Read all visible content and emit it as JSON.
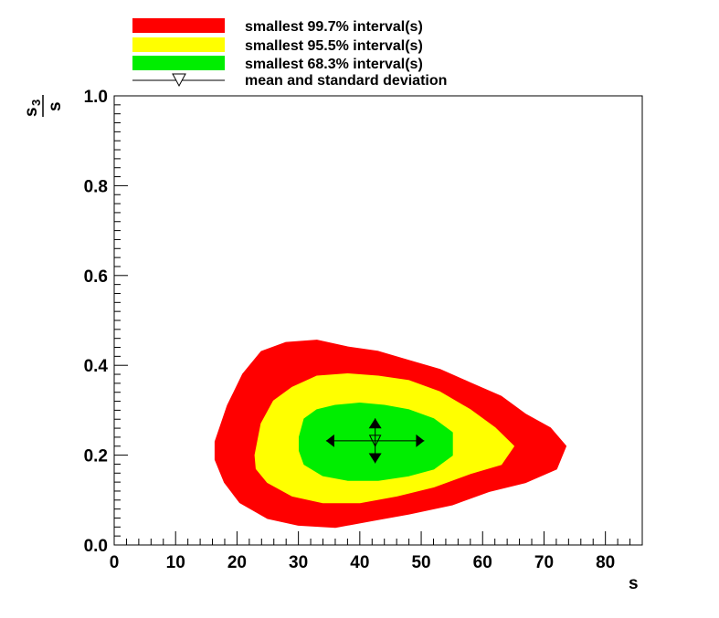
{
  "chart_data": {
    "type": "heatmap",
    "xlabel": "s",
    "ylabel": {
      "main": "s",
      "sub": "3",
      "den": "s"
    },
    "xlim": [
      0,
      86
    ],
    "ylim": [
      0,
      1.0
    ],
    "xticks": [
      0,
      10,
      20,
      30,
      40,
      50,
      60,
      70,
      80
    ],
    "xtick_labels": [
      "0",
      "10",
      "20",
      "30",
      "40",
      "50",
      "60",
      "70",
      "80"
    ],
    "yticks": [
      0.0,
      0.2,
      0.4,
      0.6,
      0.8,
      1.0
    ],
    "ytick_labels": [
      "0.0",
      "0.2",
      "0.4",
      "0.6",
      "0.8",
      "1.0"
    ],
    "grid": false,
    "legend_position": "top-left",
    "legend": [
      {
        "label": "smallest 99.7% interval(s)",
        "color": "#ff0000"
      },
      {
        "label": "smallest 95.5% interval(s)",
        "color": "#ffff00"
      },
      {
        "label": "smallest 68.3% interval(s)",
        "color": "#00ee00"
      },
      {
        "label": "mean and standard deviation",
        "color": "#000000"
      }
    ],
    "regions": [
      {
        "name": "smallest 99.7% interval(s)",
        "color": "#ff0000",
        "outline": [
          [
            16.5,
            0.23
          ],
          [
            18.5,
            0.31
          ],
          [
            21,
            0.38
          ],
          [
            24,
            0.43
          ],
          [
            28,
            0.45
          ],
          [
            33,
            0.455
          ],
          [
            38,
            0.44
          ],
          [
            43,
            0.43
          ],
          [
            48,
            0.41
          ],
          [
            53,
            0.39
          ],
          [
            58,
            0.36
          ],
          [
            63,
            0.33
          ],
          [
            67,
            0.29
          ],
          [
            71,
            0.26
          ],
          [
            73.5,
            0.22
          ],
          [
            72,
            0.17
          ],
          [
            67,
            0.14
          ],
          [
            61,
            0.12
          ],
          [
            55,
            0.09
          ],
          [
            48,
            0.07
          ],
          [
            42,
            0.055
          ],
          [
            36,
            0.04
          ],
          [
            30,
            0.045
          ],
          [
            25,
            0.06
          ],
          [
            20.5,
            0.095
          ],
          [
            18,
            0.14
          ],
          [
            16.5,
            0.19
          ]
        ]
      },
      {
        "name": "smallest 95.5% interval(s)",
        "color": "#ffff00",
        "outline": [
          [
            23,
            0.2
          ],
          [
            24,
            0.27
          ],
          [
            26,
            0.32
          ],
          [
            29,
            0.35
          ],
          [
            33,
            0.375
          ],
          [
            38,
            0.38
          ],
          [
            43,
            0.375
          ],
          [
            48,
            0.365
          ],
          [
            53,
            0.34
          ],
          [
            58,
            0.3
          ],
          [
            62,
            0.26
          ],
          [
            65,
            0.22
          ],
          [
            63,
            0.18
          ],
          [
            58,
            0.16
          ],
          [
            52,
            0.13
          ],
          [
            46,
            0.11
          ],
          [
            40,
            0.095
          ],
          [
            34,
            0.095
          ],
          [
            29,
            0.11
          ],
          [
            25,
            0.14
          ],
          [
            23.2,
            0.17
          ]
        ]
      },
      {
        "name": "smallest 68.3% interval(s)",
        "color": "#00ee00",
        "outline": [
          [
            30.2,
            0.24
          ],
          [
            31,
            0.28
          ],
          [
            33,
            0.3
          ],
          [
            36,
            0.31
          ],
          [
            40,
            0.315
          ],
          [
            44,
            0.31
          ],
          [
            48,
            0.3
          ],
          [
            52,
            0.28
          ],
          [
            55,
            0.25
          ],
          [
            55,
            0.2
          ],
          [
            52,
            0.17
          ],
          [
            48,
            0.155
          ],
          [
            43,
            0.145
          ],
          [
            38,
            0.145
          ],
          [
            34,
            0.155
          ],
          [
            31,
            0.18
          ],
          [
            30.2,
            0.21
          ]
        ]
      }
    ],
    "mean": {
      "x": 42.5,
      "y": 0.232
    },
    "std": {
      "x": 8.0,
      "y": 0.05
    }
  }
}
